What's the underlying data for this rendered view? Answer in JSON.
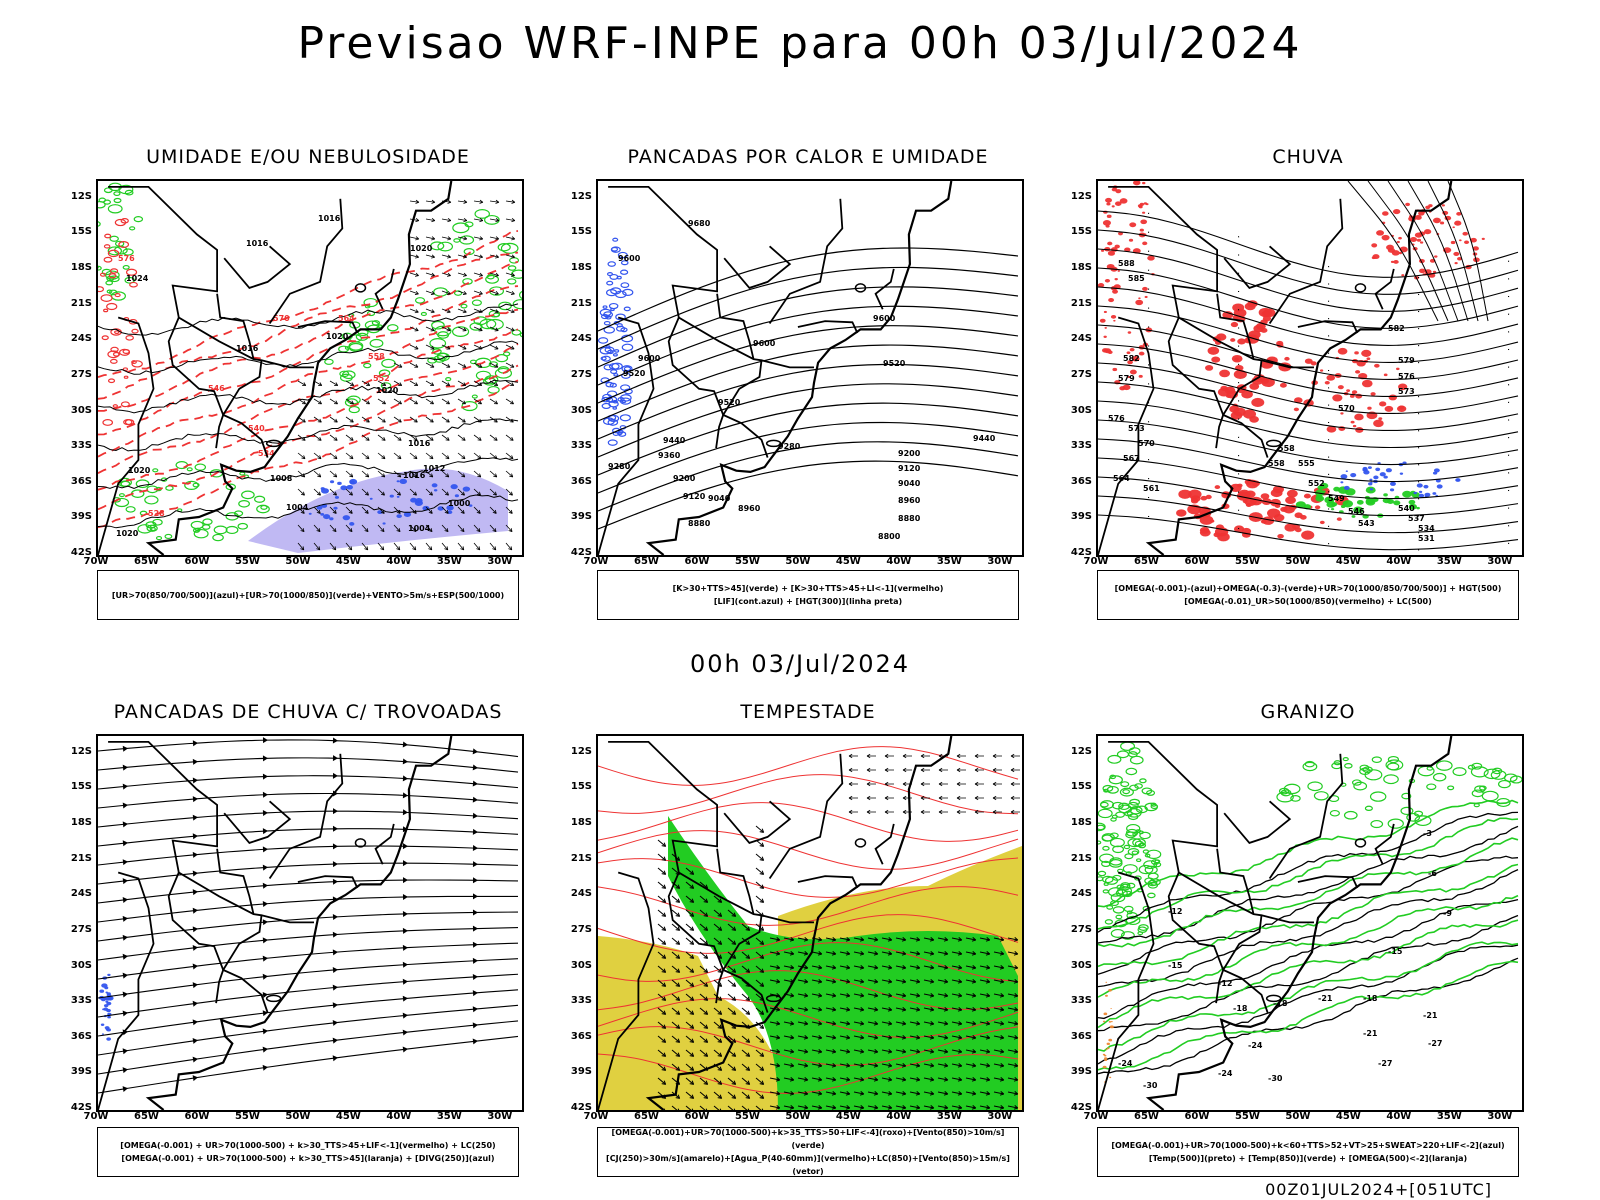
{
  "header": {
    "title": "Previsao WRF-INPE  para 00h 03/Jul/2024"
  },
  "middle": {
    "time_label": "00h 03/Jul/2024"
  },
  "footer": {
    "stamp": "00Z01JUL2024+[051UTC]"
  },
  "axes": {
    "lat_labels": [
      "12S",
      "15S",
      "18S",
      "21S",
      "24S",
      "27S",
      "30S",
      "33S",
      "36S",
      "39S",
      "42S"
    ],
    "lon_labels": [
      "70W",
      "65W",
      "60W",
      "55W",
      "50W",
      "45W",
      "40W",
      "35W",
      "30W"
    ]
  },
  "colors": {
    "blue": "#3355ee",
    "green": "#22cc22",
    "red": "#ee3333",
    "yellow": "#e0d040",
    "lavender": "#b0a8f0",
    "orange": "#ee8833"
  },
  "panels": [
    {
      "id": "umidade",
      "title": "UMIDADE E/OU NEBULOSIDADE",
      "legend": [
        "[UR>70(850/700/500)](azul)+[UR>70(1000/850)](verde)+VENTO>5m/s+ESP(500/1000)"
      ],
      "labels": [
        "1016",
        "1016",
        "1020",
        "1024",
        "1016",
        "1020",
        "1020",
        "1016",
        "1016",
        "1012",
        "1008",
        "1004",
        "1004",
        "1000",
        "1020",
        "1020",
        "576",
        "570",
        "564",
        "558",
        "552",
        "546",
        "540",
        "534",
        "528"
      ]
    },
    {
      "id": "pancadas-calor",
      "title": "PANCADAS POR CALOR E UMIDADE",
      "legend": [
        "[K>30+TTS>45](verde) + [K>30+TTS>45+LI<-1](vermelho)",
        "[LIF](cont.azul) + [HGT(300)](linha preta)"
      ],
      "labels": [
        "9680",
        "9600",
        "9600",
        "9520",
        "9600",
        "9600",
        "9520",
        "9520",
        "9440",
        "9440",
        "9360",
        "9280",
        "9280",
        "9200",
        "9200",
        "9120",
        "9120",
        "9040",
        "9040",
        "8960",
        "8960",
        "8880",
        "8880",
        "8800"
      ]
    },
    {
      "id": "chuva",
      "title": "CHUVA",
      "legend": [
        "[OMEGA(-0.001)-(azul)+OMEGA(-0.3)-(verde)+UR>70(1000/850/700/500)] + HGT(500)",
        "[OMEGA(-0.01)_UR>50(1000/850)(vermelho) + LC(500)"
      ],
      "labels": [
        "588",
        "585",
        "582",
        "579",
        "576",
        "573",
        "570",
        "567",
        "564",
        "561",
        "558",
        "555",
        "552",
        "549",
        "546",
        "543",
        "540",
        "537",
        "534",
        "531",
        "582",
        "579",
        "576",
        "573",
        "570",
        "558"
      ]
    },
    {
      "id": "trovoadas",
      "title": "PANCADAS DE CHUVA C/ TROVOADAS",
      "legend": [
        "[OMEGA(-0.001) + UR>70(1000-500) + k>30_TTS>45+LIF<-1](vermelho) + LC(250)",
        "[OMEGA(-0.001) + UR>70(1000-500) + k>30_TTS>45](laranja) + [DIVG(250)](azul)"
      ],
      "labels": []
    },
    {
      "id": "tempestade",
      "title": "TEMPESTADE",
      "legend": [
        "[OMEGA(-0.001)+UR>70(1000-500)+k>35_TTS>50+LIF<-4](roxo)+[Vento(850)>10m/s](verde)",
        "[CJ(250)>30m/s](amarelo)+[Agua_P(40-60mm)](vermelho)+LC(850)+[Vento(850)>15m/s](vetor)"
      ],
      "labels": []
    },
    {
      "id": "granizo",
      "title": "GRANIZO",
      "legend": [
        "[OMEGA(-0.001)+UR>70(1000-500)+k<60+TTS>52+VT>25+SWEAT>220+LIF<-2](azul)",
        "[Temp(500)](preto) + [Temp(850)](verde) + [OMEGA(500)<-2](laranja)"
      ],
      "labels": [
        "-3",
        "-6",
        "-9",
        "-12",
        "-15",
        "-12",
        "-18",
        "-21",
        "-24",
        "-24",
        "-27",
        "-21",
        "-24",
        "-27",
        "-30",
        "-30",
        "-15",
        "-18",
        "-18",
        "-21"
      ]
    }
  ]
}
